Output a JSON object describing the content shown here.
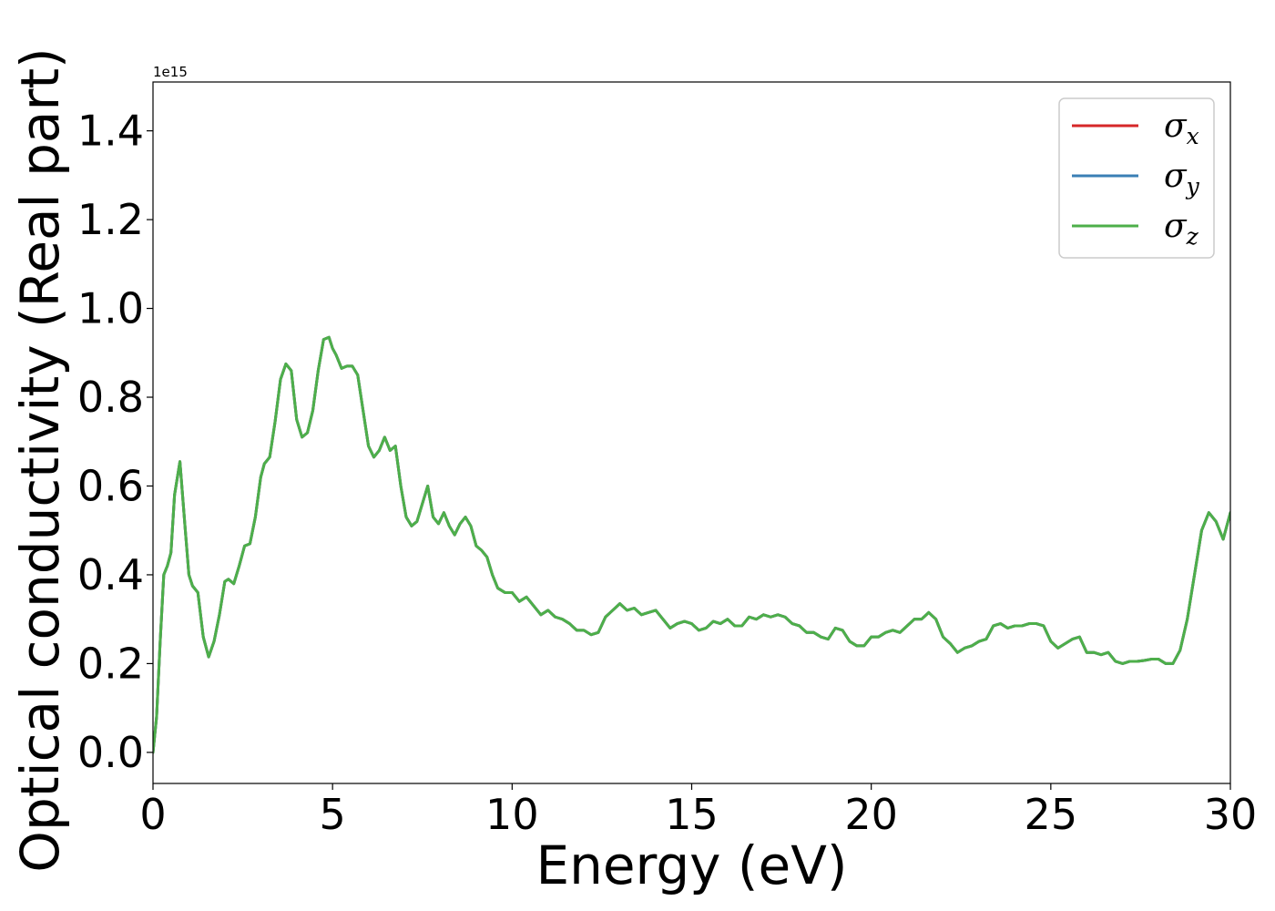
{
  "chart_data": {
    "type": "line",
    "title": "",
    "xlabel": "Energy (eV)",
    "ylabel": "Optical conductivity (Real part)",
    "y_offset_label": "1e15",
    "xlim": [
      0,
      30
    ],
    "ylim": [
      -0.07,
      1.51
    ],
    "x_ticks": [
      0,
      5,
      10,
      15,
      20,
      25,
      30
    ],
    "x_tick_labels": [
      "0",
      "5",
      "10",
      "15",
      "20",
      "25",
      "30"
    ],
    "y_ticks": [
      0.0,
      0.2,
      0.4,
      0.6,
      0.8,
      1.0,
      1.2,
      1.4
    ],
    "y_tick_labels": [
      "0.0",
      "0.2",
      "0.4",
      "0.6",
      "0.8",
      "1.0",
      "1.2",
      "1.4"
    ],
    "grid": false,
    "legend_position": "top-right",
    "x": [
      0,
      0.1,
      0.2,
      0.3,
      0.4,
      0.5,
      0.6,
      0.75,
      0.9,
      1.0,
      1.1,
      1.25,
      1.4,
      1.55,
      1.7,
      1.85,
      2.0,
      2.1,
      2.25,
      2.4,
      2.55,
      2.7,
      2.85,
      3.0,
      3.1,
      3.25,
      3.4,
      3.55,
      3.7,
      3.85,
      4.0,
      4.15,
      4.3,
      4.45,
      4.6,
      4.75,
      4.9,
      5.0,
      5.1,
      5.25,
      5.4,
      5.55,
      5.7,
      5.85,
      6.0,
      6.15,
      6.3,
      6.45,
      6.6,
      6.75,
      6.9,
      7.05,
      7.2,
      7.35,
      7.5,
      7.65,
      7.8,
      7.95,
      8.1,
      8.25,
      8.4,
      8.55,
      8.7,
      8.85,
      9.0,
      9.15,
      9.3,
      9.45,
      9.6,
      9.8,
      10.0,
      10.2,
      10.4,
      10.6,
      10.8,
      11.0,
      11.2,
      11.4,
      11.6,
      11.8,
      12.0,
      12.2,
      12.4,
      12.6,
      12.8,
      13.0,
      13.2,
      13.4,
      13.6,
      13.8,
      14.0,
      14.2,
      14.4,
      14.6,
      14.8,
      15.0,
      15.2,
      15.4,
      15.6,
      15.8,
      16.0,
      16.2,
      16.4,
      16.6,
      16.8,
      17.0,
      17.2,
      17.4,
      17.6,
      17.8,
      18.0,
      18.2,
      18.4,
      18.6,
      18.8,
      19.0,
      19.2,
      19.4,
      19.6,
      19.8,
      20.0,
      20.2,
      20.4,
      20.6,
      20.8,
      21.0,
      21.2,
      21.4,
      21.6,
      21.8,
      22.0,
      22.2,
      22.4,
      22.6,
      22.8,
      23.0,
      23.2,
      23.4,
      23.6,
      23.8,
      24.0,
      24.2,
      24.4,
      24.6,
      24.8,
      25.0,
      25.2,
      25.4,
      25.6,
      25.8,
      26.0,
      26.2,
      26.4,
      26.6,
      26.8,
      27.0,
      27.2,
      27.4,
      27.6,
      27.8,
      28.0,
      28.2,
      28.4,
      28.6,
      28.8,
      29.0,
      29.2,
      29.4,
      29.6,
      29.8,
      30.0
    ],
    "series": [
      {
        "name": "σx",
        "symbol": "σ",
        "subscript": "x",
        "color": "#d62728",
        "values": [
          0.0,
          0.08,
          0.25,
          0.4,
          0.42,
          0.45,
          0.58,
          0.655,
          0.5,
          0.4,
          0.375,
          0.36,
          0.26,
          0.215,
          0.25,
          0.31,
          0.385,
          0.39,
          0.38,
          0.42,
          0.465,
          0.47,
          0.53,
          0.62,
          0.65,
          0.665,
          0.745,
          0.84,
          0.875,
          0.86,
          0.75,
          0.71,
          0.72,
          0.77,
          0.86,
          0.93,
          0.935,
          0.91,
          0.895,
          0.865,
          0.87,
          0.87,
          0.85,
          0.77,
          0.69,
          0.665,
          0.68,
          0.71,
          0.68,
          0.69,
          0.6,
          0.53,
          0.51,
          0.52,
          0.56,
          0.6,
          0.53,
          0.515,
          0.54,
          0.51,
          0.49,
          0.515,
          0.53,
          0.51,
          0.465,
          0.455,
          0.44,
          0.4,
          0.37,
          0.36,
          0.36,
          0.34,
          0.35,
          0.33,
          0.31,
          0.32,
          0.305,
          0.3,
          0.29,
          0.275,
          0.275,
          0.265,
          0.27,
          0.305,
          0.32,
          0.335,
          0.32,
          0.325,
          0.31,
          0.315,
          0.32,
          0.3,
          0.28,
          0.29,
          0.295,
          0.29,
          0.275,
          0.28,
          0.295,
          0.29,
          0.3,
          0.285,
          0.285,
          0.305,
          0.3,
          0.31,
          0.305,
          0.31,
          0.305,
          0.29,
          0.285,
          0.27,
          0.27,
          0.26,
          0.255,
          0.28,
          0.275,
          0.25,
          0.24,
          0.24,
          0.26,
          0.26,
          0.27,
          0.275,
          0.27,
          0.285,
          0.3,
          0.3,
          0.315,
          0.3,
          0.26,
          0.245,
          0.225,
          0.235,
          0.24,
          0.25,
          0.255,
          0.285,
          0.29,
          0.28,
          0.285,
          0.285,
          0.29,
          0.29,
          0.285,
          0.25,
          0.235,
          0.245,
          0.255,
          0.26,
          0.225,
          0.225,
          0.22,
          0.225,
          0.205,
          0.2,
          0.205,
          0.205,
          0.207,
          0.21,
          0.21,
          0.2,
          0.2,
          0.23,
          0.3,
          0.4,
          0.5,
          0.54,
          0.52,
          0.48,
          0.54
        ]
      },
      {
        "name": "σy",
        "symbol": "σ",
        "subscript": "y",
        "color": "#3a7fb5",
        "values": [
          0.0,
          0.08,
          0.25,
          0.4,
          0.42,
          0.45,
          0.58,
          0.655,
          0.5,
          0.4,
          0.375,
          0.36,
          0.26,
          0.215,
          0.25,
          0.31,
          0.385,
          0.39,
          0.38,
          0.42,
          0.465,
          0.47,
          0.53,
          0.62,
          0.65,
          0.665,
          0.745,
          0.84,
          0.875,
          0.86,
          0.75,
          0.71,
          0.72,
          0.77,
          0.86,
          0.93,
          0.935,
          0.91,
          0.895,
          0.865,
          0.87,
          0.87,
          0.85,
          0.77,
          0.69,
          0.665,
          0.68,
          0.71,
          0.68,
          0.69,
          0.6,
          0.53,
          0.51,
          0.52,
          0.56,
          0.6,
          0.53,
          0.515,
          0.54,
          0.51,
          0.49,
          0.515,
          0.53,
          0.51,
          0.465,
          0.455,
          0.44,
          0.4,
          0.37,
          0.36,
          0.36,
          0.34,
          0.35,
          0.33,
          0.31,
          0.32,
          0.305,
          0.3,
          0.29,
          0.275,
          0.275,
          0.265,
          0.27,
          0.305,
          0.32,
          0.335,
          0.32,
          0.325,
          0.31,
          0.315,
          0.32,
          0.3,
          0.28,
          0.29,
          0.295,
          0.29,
          0.275,
          0.28,
          0.295,
          0.29,
          0.3,
          0.285,
          0.285,
          0.305,
          0.3,
          0.31,
          0.305,
          0.31,
          0.305,
          0.29,
          0.285,
          0.27,
          0.27,
          0.26,
          0.255,
          0.28,
          0.275,
          0.25,
          0.24,
          0.24,
          0.26,
          0.26,
          0.27,
          0.275,
          0.27,
          0.285,
          0.3,
          0.3,
          0.315,
          0.3,
          0.26,
          0.245,
          0.225,
          0.235,
          0.24,
          0.25,
          0.255,
          0.285,
          0.29,
          0.28,
          0.285,
          0.285,
          0.29,
          0.29,
          0.285,
          0.25,
          0.235,
          0.245,
          0.255,
          0.26,
          0.225,
          0.225,
          0.22,
          0.225,
          0.205,
          0.2,
          0.205,
          0.205,
          0.207,
          0.21,
          0.21,
          0.2,
          0.2,
          0.23,
          0.3,
          0.4,
          0.5,
          0.54,
          0.52,
          0.48,
          0.54
        ]
      },
      {
        "name": "σz",
        "symbol": "σ",
        "subscript": "z",
        "color": "#4daf4a",
        "values": [
          0.0,
          0.08,
          0.25,
          0.4,
          0.42,
          0.45,
          0.58,
          0.655,
          0.5,
          0.4,
          0.375,
          0.36,
          0.26,
          0.215,
          0.25,
          0.31,
          0.385,
          0.39,
          0.38,
          0.42,
          0.465,
          0.47,
          0.53,
          0.62,
          0.65,
          0.665,
          0.745,
          0.84,
          0.875,
          0.86,
          0.75,
          0.71,
          0.72,
          0.77,
          0.86,
          0.93,
          0.935,
          0.91,
          0.895,
          0.865,
          0.87,
          0.87,
          0.85,
          0.77,
          0.69,
          0.665,
          0.68,
          0.71,
          0.68,
          0.69,
          0.6,
          0.53,
          0.51,
          0.52,
          0.56,
          0.6,
          0.53,
          0.515,
          0.54,
          0.51,
          0.49,
          0.515,
          0.53,
          0.51,
          0.465,
          0.455,
          0.44,
          0.4,
          0.37,
          0.36,
          0.36,
          0.34,
          0.35,
          0.33,
          0.31,
          0.32,
          0.305,
          0.3,
          0.29,
          0.275,
          0.275,
          0.265,
          0.27,
          0.305,
          0.32,
          0.335,
          0.32,
          0.325,
          0.31,
          0.315,
          0.32,
          0.3,
          0.28,
          0.29,
          0.295,
          0.29,
          0.275,
          0.28,
          0.295,
          0.29,
          0.3,
          0.285,
          0.285,
          0.305,
          0.3,
          0.31,
          0.305,
          0.31,
          0.305,
          0.29,
          0.285,
          0.27,
          0.27,
          0.26,
          0.255,
          0.28,
          0.275,
          0.25,
          0.24,
          0.24,
          0.26,
          0.26,
          0.27,
          0.275,
          0.27,
          0.285,
          0.3,
          0.3,
          0.315,
          0.3,
          0.26,
          0.245,
          0.225,
          0.235,
          0.24,
          0.25,
          0.255,
          0.285,
          0.29,
          0.28,
          0.285,
          0.285,
          0.29,
          0.29,
          0.285,
          0.25,
          0.235,
          0.245,
          0.255,
          0.26,
          0.225,
          0.225,
          0.22,
          0.225,
          0.205,
          0.2,
          0.205,
          0.205,
          0.207,
          0.21,
          0.21,
          0.2,
          0.2,
          0.23,
          0.3,
          0.4,
          0.5,
          0.54,
          0.52,
          0.48,
          0.54
        ]
      }
    ]
  }
}
